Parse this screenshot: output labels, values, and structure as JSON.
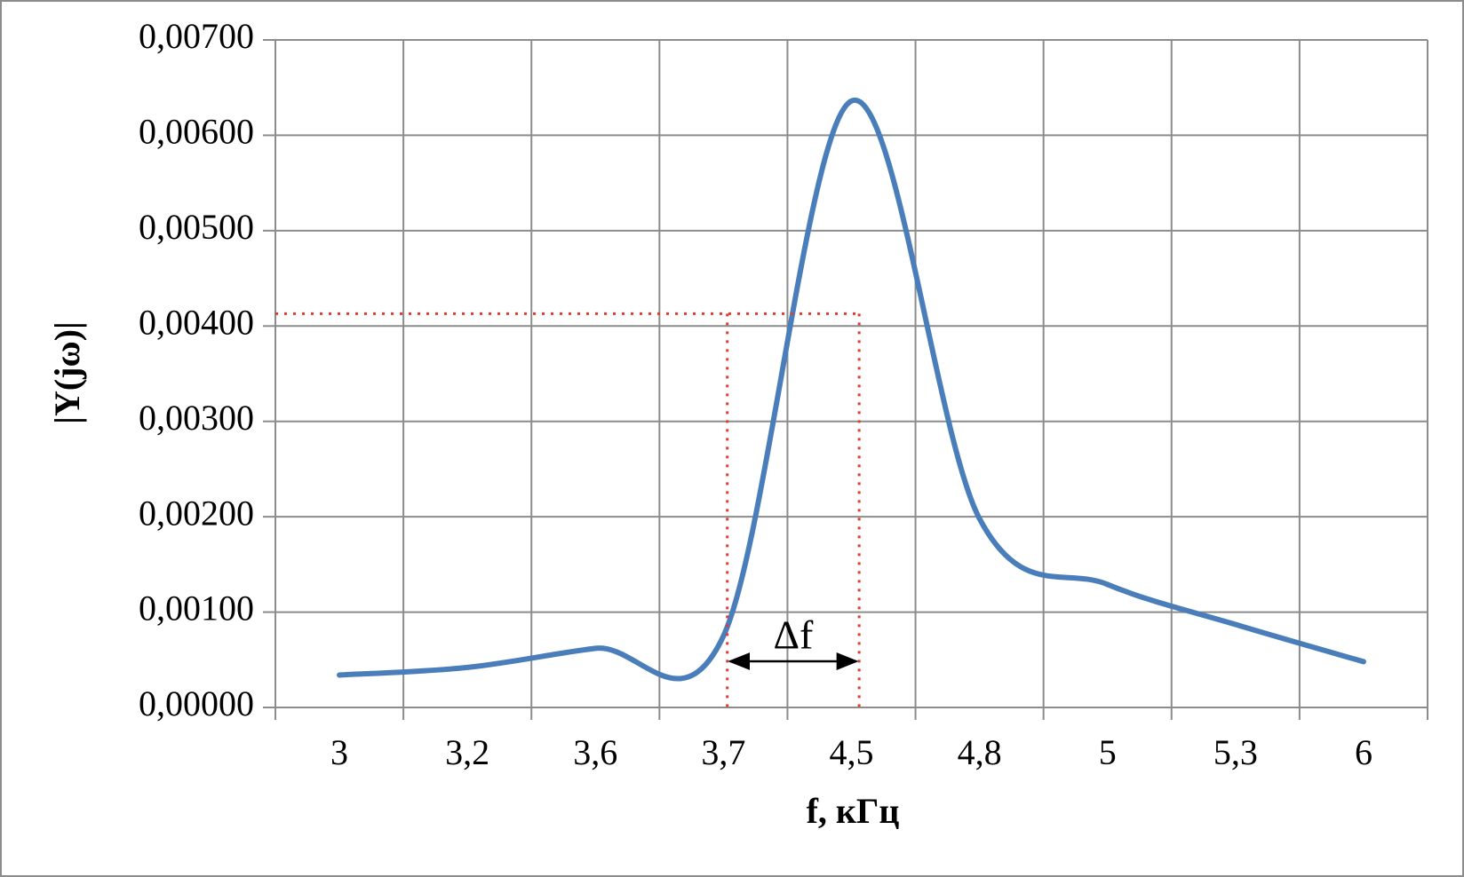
{
  "chart_data": {
    "type": "line",
    "x_label": "f, кГц",
    "y_label": "|Y(jω)|",
    "categories": [
      "3",
      "3,2",
      "3,6",
      "3,7",
      "4,5",
      "4,8",
      "5",
      "5,3",
      "6"
    ],
    "series": [
      {
        "color": "#4a7ebb",
        "values": [
          0.00034,
          0.00042,
          0.00062,
          0.00075,
          0.00636,
          0.00198,
          0.00129,
          0.00087,
          0.00048
        ]
      }
    ],
    "ylim": [
      0,
      0.007
    ],
    "yticks": [
      {
        "value": 0,
        "label": "0,00000"
      },
      {
        "value": 0.001,
        "label": "0,00100"
      },
      {
        "value": 0.002,
        "label": "0,00200"
      },
      {
        "value": 0.003,
        "label": "0,00300"
      },
      {
        "value": 0.004,
        "label": "0,00400"
      },
      {
        "value": 0.005,
        "label": "0,00500"
      },
      {
        "value": 0.006,
        "label": "0,00600"
      },
      {
        "value": 0.007,
        "label": "0,00700"
      }
    ],
    "grid": true,
    "annotation": {
      "text": "Δf",
      "level": 0.00413,
      "color": "#e03c31"
    }
  }
}
